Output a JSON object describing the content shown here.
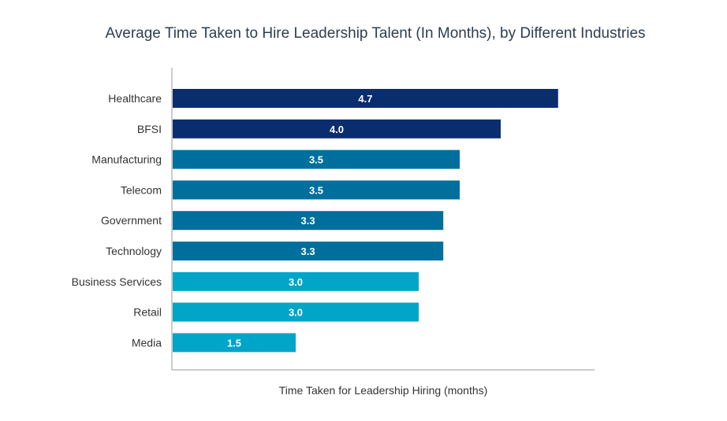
{
  "chart_data": {
    "type": "bar",
    "orientation": "horizontal",
    "title": "Average Time Taken to Hire Leadership Talent (In Months), by Different Industries",
    "xlabel": "Time Taken for Leadership Hiring (months)",
    "ylabel": "",
    "xlim": [
      0,
      5.5
    ],
    "grid": false,
    "legend": "none",
    "categories": [
      "Healthcare",
      "BFSI",
      "Manufacturing",
      "Telecom",
      "Government",
      "Technology",
      "Business Services",
      "Retail",
      "Media"
    ],
    "values": [
      4.7,
      4.0,
      3.5,
      3.5,
      3.3,
      3.3,
      3.0,
      3.0,
      1.5
    ],
    "value_labels": [
      "4.7",
      "4.0",
      "3.5",
      "3.5",
      "3.3",
      "3.3",
      "3.0",
      "3.0",
      "1.5"
    ],
    "bar_colors": [
      "#0a2d6e",
      "#0a2d6e",
      "#006f9e",
      "#006f9e",
      "#006f9e",
      "#006f9e",
      "#00a5c8",
      "#00a5c8",
      "#00a5c8"
    ]
  }
}
